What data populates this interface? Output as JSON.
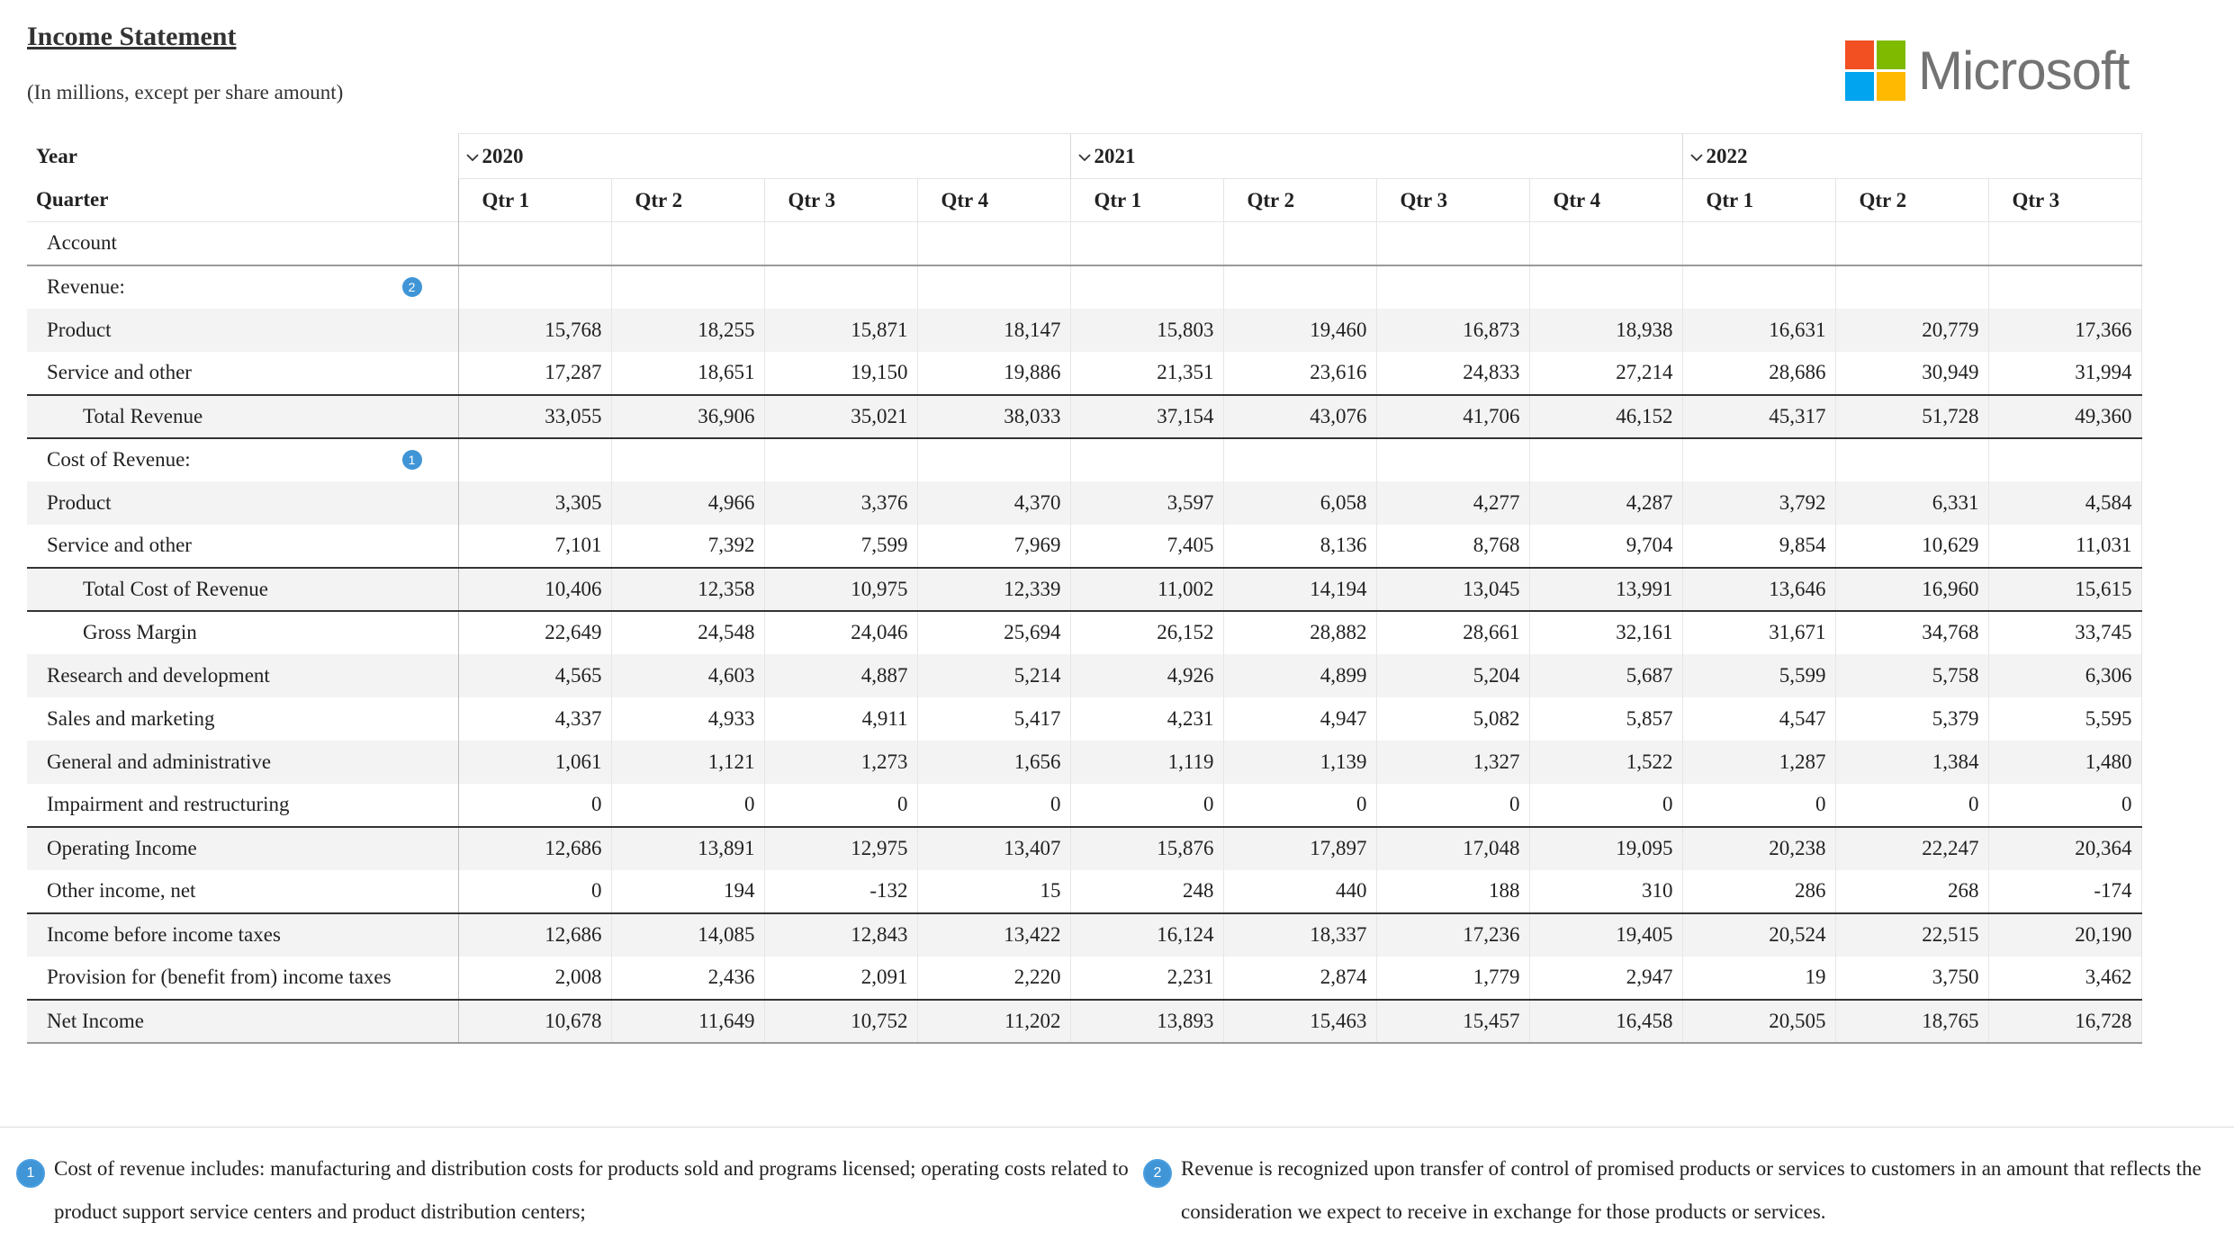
{
  "header": {
    "title": "Income Statement",
    "subtitle": "(In millions, except per share amount)",
    "logo_text": "Microsoft",
    "logo_colors": [
      "#f25022",
      "#7fba00",
      "#00a4ef",
      "#ffb900"
    ]
  },
  "matrix": {
    "year_label": "Year",
    "quarter_label": "Quarter",
    "account_label": "Account",
    "years": [
      "2020",
      "2021",
      "2022"
    ],
    "quarters": [
      "Qtr 1",
      "Qtr 2",
      "Qtr 3",
      "Qtr 4",
      "Qtr 1",
      "Qtr 2",
      "Qtr 3",
      "Qtr 4",
      "Qtr 1",
      "Qtr 2",
      "Qtr 3"
    ],
    "rows": [
      {
        "label": "Revenue:",
        "badge": "2",
        "values": []
      },
      {
        "label": "Product",
        "values": [
          "15,768",
          "18,255",
          "15,871",
          "18,147",
          "15,803",
          "19,460",
          "16,873",
          "18,938",
          "16,631",
          "20,779",
          "17,366"
        ]
      },
      {
        "label": "Service and other",
        "values": [
          "17,287",
          "18,651",
          "19,150",
          "19,886",
          "21,351",
          "23,616",
          "24,833",
          "27,214",
          "28,686",
          "30,949",
          "31,994"
        ]
      },
      {
        "label": "Total Revenue",
        "indent": true,
        "total": true,
        "values": [
          "33,055",
          "36,906",
          "35,021",
          "38,033",
          "37,154",
          "43,076",
          "41,706",
          "46,152",
          "45,317",
          "51,728",
          "49,360"
        ]
      },
      {
        "label": "Cost of Revenue:",
        "badge": "1",
        "total": true,
        "values": []
      },
      {
        "label": "Product",
        "values": [
          "3,305",
          "4,966",
          "3,376",
          "4,370",
          "3,597",
          "6,058",
          "4,277",
          "4,287",
          "3,792",
          "6,331",
          "4,584"
        ]
      },
      {
        "label": "Service and other",
        "values": [
          "7,101",
          "7,392",
          "7,599",
          "7,969",
          "7,405",
          "8,136",
          "8,768",
          "9,704",
          "9,854",
          "10,629",
          "11,031"
        ]
      },
      {
        "label": "Total Cost of Revenue",
        "indent": true,
        "total": true,
        "values": [
          "10,406",
          "12,358",
          "10,975",
          "12,339",
          "11,002",
          "14,194",
          "13,045",
          "13,991",
          "13,646",
          "16,960",
          "15,615"
        ]
      },
      {
        "label": "Gross Margin",
        "indent": true,
        "total": true,
        "values": [
          "22,649",
          "24,548",
          "24,046",
          "25,694",
          "26,152",
          "28,882",
          "28,661",
          "32,161",
          "31,671",
          "34,768",
          "33,745"
        ]
      },
      {
        "label": "Research and development",
        "values": [
          "4,565",
          "4,603",
          "4,887",
          "5,214",
          "4,926",
          "4,899",
          "5,204",
          "5,687",
          "5,599",
          "5,758",
          "6,306"
        ]
      },
      {
        "label": "Sales and marketing",
        "values": [
          "4,337",
          "4,933",
          "4,911",
          "5,417",
          "4,231",
          "4,947",
          "5,082",
          "5,857",
          "4,547",
          "5,379",
          "5,595"
        ]
      },
      {
        "label": "General and administrative",
        "values": [
          "1,061",
          "1,121",
          "1,273",
          "1,656",
          "1,119",
          "1,139",
          "1,327",
          "1,522",
          "1,287",
          "1,384",
          "1,480"
        ]
      },
      {
        "label": "Impairment and restructuring",
        "values": [
          "0",
          "0",
          "0",
          "0",
          "0",
          "0",
          "0",
          "0",
          "0",
          "0",
          "0"
        ]
      },
      {
        "label": "Operating Income",
        "total": true,
        "values": [
          "12,686",
          "13,891",
          "12,975",
          "13,407",
          "15,876",
          "17,897",
          "17,048",
          "19,095",
          "20,238",
          "22,247",
          "20,364"
        ]
      },
      {
        "label": "Other income, net",
        "values": [
          "0",
          "194",
          "-132",
          "15",
          "248",
          "440",
          "188",
          "310",
          "286",
          "268",
          "-174"
        ]
      },
      {
        "label": "Income before income taxes",
        "total": true,
        "values": [
          "12,686",
          "14,085",
          "12,843",
          "13,422",
          "16,124",
          "18,337",
          "17,236",
          "19,405",
          "20,524",
          "22,515",
          "20,190"
        ]
      },
      {
        "label": "Provision for (benefit from) income taxes",
        "values": [
          "2,008",
          "2,436",
          "2,091",
          "2,220",
          "2,231",
          "2,874",
          "1,779",
          "2,947",
          "19",
          "3,750",
          "3,462"
        ]
      },
      {
        "label": "Net Income",
        "total": true,
        "values": [
          "10,678",
          "11,649",
          "10,752",
          "11,202",
          "13,893",
          "15,463",
          "15,457",
          "16,458",
          "20,505",
          "18,765",
          "16,728"
        ]
      }
    ]
  },
  "notes": [
    {
      "badge": "1",
      "text": "Cost of revenue includes: manufacturing and distribution costs for products sold and programs licensed; operating costs related to product support service centers and product distribution centers;"
    },
    {
      "badge": "2",
      "text": "Revenue is recognized upon transfer of control of promised products or services to customers in an amount that reflects the consideration we expect to receive in exchange for those products or services."
    }
  ]
}
